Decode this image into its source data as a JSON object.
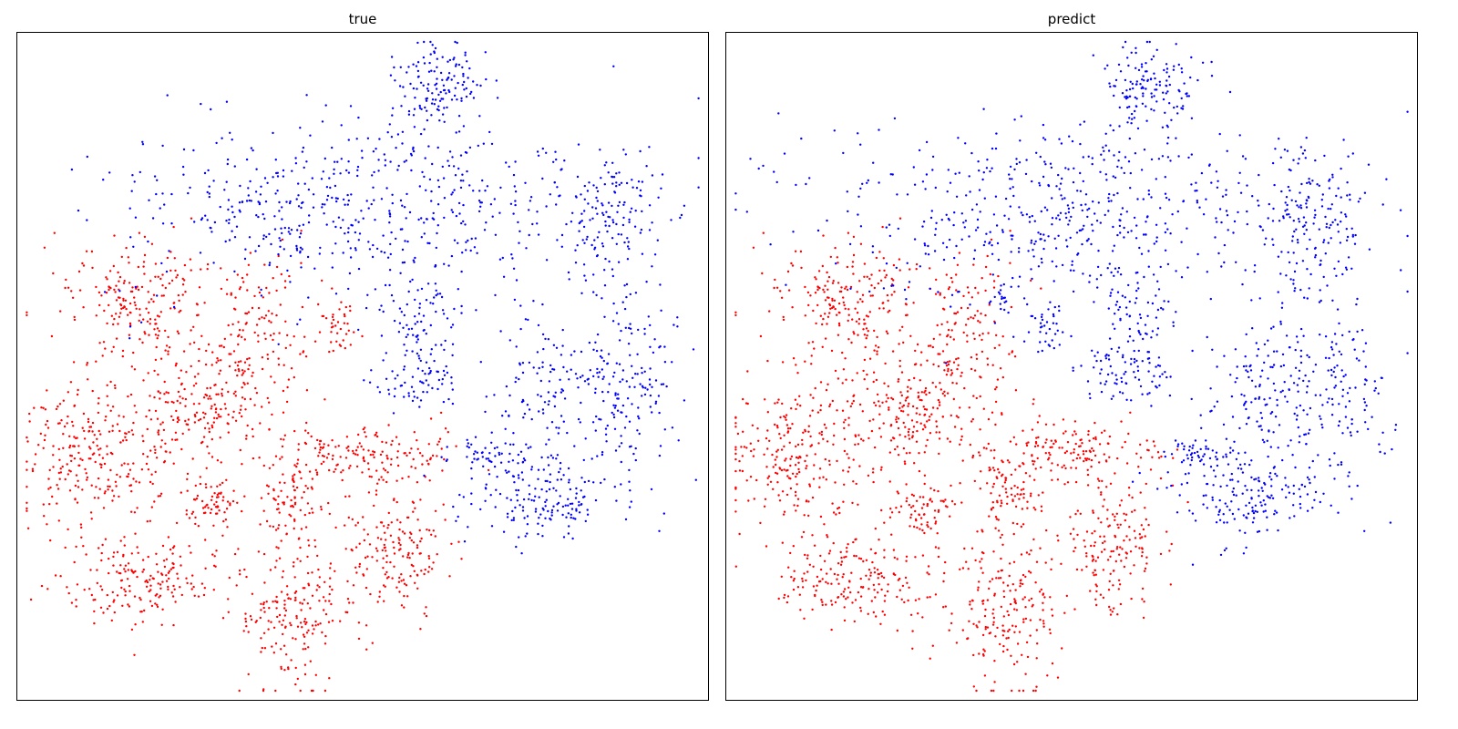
{
  "chart_data": [
    {
      "type": "scatter",
      "title": "true",
      "xlabel": "",
      "ylabel": "",
      "grid": false,
      "axes_ticks": false,
      "colors": {
        "class_0": "#ff0000",
        "class_1": "#0000ff"
      },
      "clusters": [
        {
          "cls": 0,
          "cx": 0.17,
          "cy": 0.41,
          "sx": 0.06,
          "sy": 0.05,
          "n": 210
        },
        {
          "cls": 0,
          "cx": 0.34,
          "cy": 0.45,
          "sx": 0.04,
          "sy": 0.06,
          "n": 150
        },
        {
          "cls": 0,
          "cx": 0.46,
          "cy": 0.44,
          "sx": 0.015,
          "sy": 0.02,
          "n": 40
        },
        {
          "cls": 0,
          "cx": 0.11,
          "cy": 0.63,
          "sx": 0.06,
          "sy": 0.06,
          "n": 260
        },
        {
          "cls": 0,
          "cx": 0.27,
          "cy": 0.57,
          "sx": 0.05,
          "sy": 0.04,
          "n": 170
        },
        {
          "cls": 0,
          "cx": 0.5,
          "cy": 0.63,
          "sx": 0.07,
          "sy": 0.025,
          "n": 160
        },
        {
          "cls": 0,
          "cx": 0.4,
          "cy": 0.69,
          "sx": 0.025,
          "sy": 0.03,
          "n": 80
        },
        {
          "cls": 0,
          "cx": 0.28,
          "cy": 0.71,
          "sx": 0.025,
          "sy": 0.02,
          "n": 70
        },
        {
          "cls": 0,
          "cx": 0.55,
          "cy": 0.77,
          "sx": 0.04,
          "sy": 0.05,
          "n": 170
        },
        {
          "cls": 0,
          "cx": 0.18,
          "cy": 0.82,
          "sx": 0.06,
          "sy": 0.035,
          "n": 190
        },
        {
          "cls": 0,
          "cx": 0.4,
          "cy": 0.86,
          "sx": 0.045,
          "sy": 0.06,
          "n": 200
        },
        {
          "cls": 1,
          "cx": 0.61,
          "cy": 0.08,
          "sx": 0.035,
          "sy": 0.03,
          "n": 130
        },
        {
          "cls": 1,
          "cx": 0.49,
          "cy": 0.26,
          "sx": 0.18,
          "sy": 0.07,
          "n": 560
        },
        {
          "cls": 1,
          "cx": 0.85,
          "cy": 0.28,
          "sx": 0.035,
          "sy": 0.055,
          "n": 140
        },
        {
          "cls": 1,
          "cx": 0.59,
          "cy": 0.43,
          "sx": 0.03,
          "sy": 0.04,
          "n": 90
        },
        {
          "cls": 1,
          "cx": 0.58,
          "cy": 0.52,
          "sx": 0.035,
          "sy": 0.02,
          "n": 60
        },
        {
          "cls": 1,
          "cx": 0.87,
          "cy": 0.53,
          "sx": 0.045,
          "sy": 0.08,
          "n": 190
        },
        {
          "cls": 1,
          "cx": 0.76,
          "cy": 0.53,
          "sx": 0.035,
          "sy": 0.05,
          "n": 90
        },
        {
          "cls": 1,
          "cx": 0.69,
          "cy": 0.63,
          "sx": 0.03,
          "sy": 0.015,
          "n": 50
        },
        {
          "cls": 1,
          "cx": 0.75,
          "cy": 0.69,
          "sx": 0.055,
          "sy": 0.035,
          "n": 170
        }
      ]
    },
    {
      "type": "scatter",
      "title": "predict",
      "xlabel": "",
      "ylabel": "",
      "grid": false,
      "axes_ticks": false,
      "colors": {
        "class_0": "#ff0000",
        "class_1": "#0000ff"
      },
      "clusters": [
        {
          "cls": 0,
          "cx": 0.17,
          "cy": 0.41,
          "sx": 0.06,
          "sy": 0.05,
          "n": 210
        },
        {
          "cls": 0,
          "cx": 0.34,
          "cy": 0.45,
          "sx": 0.04,
          "sy": 0.06,
          "n": 150
        },
        {
          "cls": 1,
          "cx": 0.46,
          "cy": 0.44,
          "sx": 0.015,
          "sy": 0.02,
          "n": 40
        },
        {
          "cls": 1,
          "cx": 0.4,
          "cy": 0.4,
          "sx": 0.008,
          "sy": 0.015,
          "n": 15
        },
        {
          "cls": 0,
          "cx": 0.11,
          "cy": 0.63,
          "sx": 0.06,
          "sy": 0.06,
          "n": 260
        },
        {
          "cls": 0,
          "cx": 0.27,
          "cy": 0.57,
          "sx": 0.05,
          "sy": 0.04,
          "n": 170
        },
        {
          "cls": 0,
          "cx": 0.5,
          "cy": 0.63,
          "sx": 0.07,
          "sy": 0.025,
          "n": 160
        },
        {
          "cls": 0,
          "cx": 0.4,
          "cy": 0.69,
          "sx": 0.025,
          "sy": 0.03,
          "n": 80
        },
        {
          "cls": 0,
          "cx": 0.28,
          "cy": 0.71,
          "sx": 0.025,
          "sy": 0.02,
          "n": 70
        },
        {
          "cls": 0,
          "cx": 0.55,
          "cy": 0.77,
          "sx": 0.04,
          "sy": 0.05,
          "n": 170
        },
        {
          "cls": 0,
          "cx": 0.18,
          "cy": 0.82,
          "sx": 0.06,
          "sy": 0.035,
          "n": 190
        },
        {
          "cls": 0,
          "cx": 0.4,
          "cy": 0.86,
          "sx": 0.045,
          "sy": 0.06,
          "n": 200
        },
        {
          "cls": 1,
          "cx": 0.61,
          "cy": 0.08,
          "sx": 0.035,
          "sy": 0.03,
          "n": 130
        },
        {
          "cls": 1,
          "cx": 0.49,
          "cy": 0.26,
          "sx": 0.18,
          "sy": 0.07,
          "n": 560
        },
        {
          "cls": 1,
          "cx": 0.85,
          "cy": 0.28,
          "sx": 0.035,
          "sy": 0.055,
          "n": 140
        },
        {
          "cls": 1,
          "cx": 0.59,
          "cy": 0.43,
          "sx": 0.03,
          "sy": 0.04,
          "n": 90
        },
        {
          "cls": 1,
          "cx": 0.58,
          "cy": 0.52,
          "sx": 0.035,
          "sy": 0.02,
          "n": 60
        },
        {
          "cls": 1,
          "cx": 0.87,
          "cy": 0.53,
          "sx": 0.045,
          "sy": 0.08,
          "n": 190
        },
        {
          "cls": 1,
          "cx": 0.76,
          "cy": 0.53,
          "sx": 0.035,
          "sy": 0.05,
          "n": 90
        },
        {
          "cls": 1,
          "cx": 0.69,
          "cy": 0.63,
          "sx": 0.03,
          "sy": 0.015,
          "n": 50
        },
        {
          "cls": 1,
          "cx": 0.75,
          "cy": 0.69,
          "sx": 0.055,
          "sy": 0.035,
          "n": 170
        }
      ]
    }
  ]
}
